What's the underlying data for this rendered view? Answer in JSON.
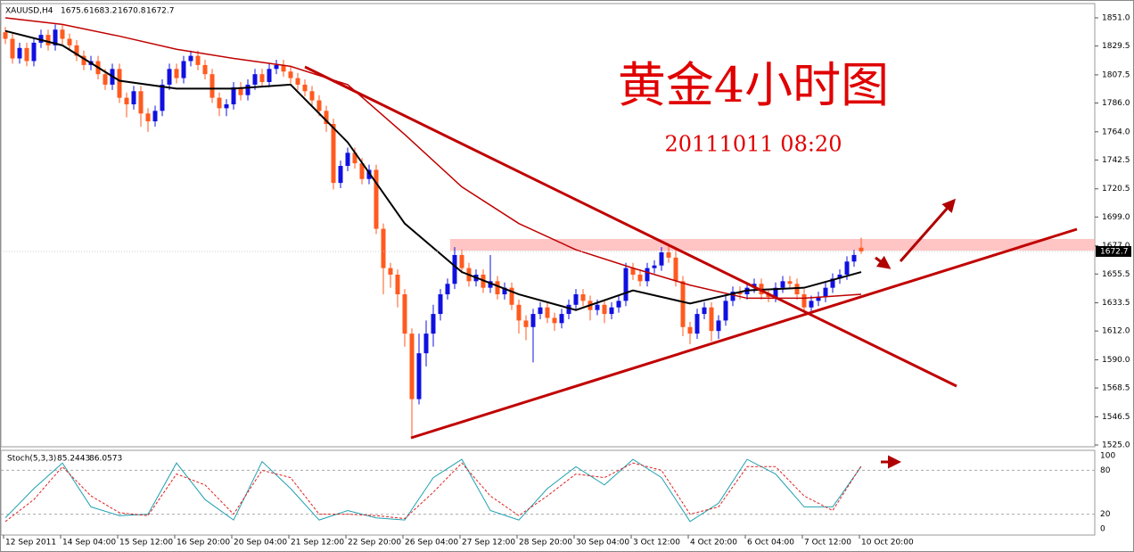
{
  "chart_data": [
    {
      "type": "candlestick",
      "symbol": "XAUUSD,H4",
      "title": "黄金4小时图",
      "subtitle": "20111011 08:20",
      "open": [
        1840,
        1835,
        1820,
        1828,
        1818,
        1832,
        1838,
        1830,
        1842,
        1835,
        1830,
        1822,
        1815,
        1818,
        1808,
        1800,
        1812,
        1790,
        1785,
        1795,
        1778,
        1772,
        1780,
        1800,
        1812,
        1805,
        1818,
        1822,
        1815,
        1808,
        1790,
        1782,
        1785,
        1798,
        1792,
        1800,
        1808,
        1802,
        1812,
        1815,
        1810,
        1805,
        1800,
        1795,
        1788,
        1780,
        1770,
        1725,
        1738,
        1748,
        1740,
        1728,
        1735,
        1690,
        1660,
        1655,
        1640,
        1610,
        1560,
        1595,
        1610,
        1625,
        1640,
        1648,
        1670,
        1660,
        1650,
        1655,
        1645,
        1650,
        1640,
        1645,
        1632,
        1620,
        1615,
        1625,
        1630,
        1622,
        1618,
        1625,
        1632,
        1640,
        1635,
        1628,
        1632,
        1625,
        1630,
        1635,
        1660,
        1655,
        1650,
        1660,
        1662,
        1672,
        1668,
        1650,
        1615,
        1610,
        1625,
        1630,
        1612,
        1620,
        1635,
        1642,
        1640,
        1645,
        1648,
        1640,
        1638,
        1645,
        1650,
        1648,
        1640,
        1630,
        1635,
        1638,
        1645,
        1652,
        1655,
        1665,
        1675.6
      ],
      "high": [
        1844,
        1839,
        1832,
        1832,
        1836,
        1842,
        1842,
        1846,
        1846,
        1839,
        1834,
        1826,
        1822,
        1822,
        1812,
        1816,
        1816,
        1794,
        1799,
        1799,
        1782,
        1784,
        1804,
        1816,
        1816,
        1822,
        1826,
        1826,
        1819,
        1812,
        1794,
        1789,
        1802,
        1802,
        1804,
        1812,
        1812,
        1816,
        1819,
        1819,
        1814,
        1809,
        1804,
        1799,
        1792,
        1784,
        1774,
        1742,
        1752,
        1752,
        1744,
        1739,
        1739,
        1694,
        1664,
        1659,
        1644,
        1614,
        1610,
        1620,
        1632,
        1644,
        1652,
        1676,
        1674,
        1664,
        1659,
        1659,
        1670,
        1654,
        1649,
        1649,
        1636,
        1624,
        1629,
        1634,
        1634,
        1626,
        1629,
        1636,
        1644,
        1644,
        1639,
        1636,
        1636,
        1634,
        1639,
        1664,
        1664,
        1659,
        1664,
        1666,
        1676,
        1678,
        1674,
        1654,
        1619,
        1629,
        1634,
        1634,
        1624,
        1639,
        1646,
        1646,
        1649,
        1652,
        1652,
        1644,
        1649,
        1654,
        1654,
        1652,
        1644,
        1639,
        1642,
        1649,
        1656,
        1659,
        1669,
        1674,
        1683.2
      ],
      "low": [
        1831,
        1816,
        1816,
        1814,
        1814,
        1828,
        1826,
        1826,
        1831,
        1826,
        1818,
        1811,
        1811,
        1804,
        1796,
        1796,
        1786,
        1775,
        1781,
        1768,
        1764,
        1768,
        1776,
        1796,
        1801,
        1801,
        1814,
        1811,
        1804,
        1786,
        1776,
        1776,
        1781,
        1788,
        1788,
        1796,
        1798,
        1798,
        1808,
        1806,
        1801,
        1796,
        1791,
        1784,
        1776,
        1764,
        1720,
        1721,
        1734,
        1736,
        1724,
        1724,
        1686,
        1640,
        1645,
        1630,
        1600,
        1532,
        1556,
        1585,
        1600,
        1620,
        1636,
        1644,
        1656,
        1646,
        1646,
        1641,
        1641,
        1636,
        1636,
        1628,
        1610,
        1605,
        1588,
        1621,
        1618,
        1612,
        1614,
        1621,
        1628,
        1631,
        1620,
        1624,
        1618,
        1621,
        1626,
        1631,
        1651,
        1646,
        1646,
        1656,
        1658,
        1664,
        1646,
        1608,
        1602,
        1606,
        1621,
        1604,
        1606,
        1616,
        1631,
        1636,
        1636,
        1641,
        1636,
        1634,
        1634,
        1641,
        1644,
        1636,
        1626,
        1626,
        1631,
        1634,
        1641,
        1648,
        1651,
        1661,
        1670.8
      ],
      "close": [
        1835,
        1820,
        1828,
        1818,
        1832,
        1838,
        1830,
        1842,
        1835,
        1830,
        1822,
        1815,
        1818,
        1808,
        1800,
        1812,
        1790,
        1785,
        1795,
        1778,
        1772,
        1780,
        1800,
        1812,
        1805,
        1818,
        1822,
        1815,
        1808,
        1790,
        1782,
        1785,
        1798,
        1792,
        1800,
        1808,
        1802,
        1812,
        1815,
        1810,
        1805,
        1800,
        1795,
        1788,
        1780,
        1770,
        1725,
        1738,
        1748,
        1740,
        1728,
        1735,
        1690,
        1660,
        1655,
        1640,
        1610,
        1560,
        1595,
        1610,
        1625,
        1640,
        1648,
        1670,
        1660,
        1650,
        1655,
        1645,
        1650,
        1640,
        1645,
        1632,
        1620,
        1615,
        1625,
        1630,
        1622,
        1618,
        1625,
        1632,
        1640,
        1635,
        1628,
        1632,
        1625,
        1630,
        1635,
        1660,
        1655,
        1650,
        1660,
        1662,
        1672,
        1668,
        1650,
        1615,
        1610,
        1625,
        1630,
        1612,
        1620,
        1635,
        1642,
        1640,
        1645,
        1648,
        1640,
        1638,
        1645,
        1650,
        1648,
        1640,
        1630,
        1635,
        1638,
        1645,
        1652,
        1655,
        1665,
        1670,
        1672.7
      ],
      "up_color": "#1010e0",
      "down_color": "#ff5a1f",
      "lines": [
        {
          "color": "#c00000",
          "width": 1.5,
          "x": [
            0,
            8,
            16,
            24,
            32,
            40,
            48,
            56,
            64,
            72,
            80,
            88,
            96,
            104,
            112,
            120
          ],
          "values": [
            1851,
            1846,
            1837,
            1827,
            1820,
            1814,
            1800,
            1762,
            1722,
            1694,
            1674,
            1660,
            1647,
            1637,
            1637,
            1640
          ]
        },
        {
          "color": "#000000",
          "width": 2,
          "x": [
            0,
            8,
            16,
            24,
            32,
            40,
            48,
            56,
            64,
            72,
            80,
            88,
            96,
            104,
            112,
            120
          ],
          "values": [
            1841,
            1830,
            1803,
            1797,
            1797,
            1800,
            1756,
            1694,
            1657,
            1640,
            1628,
            1643,
            1633,
            1643,
            1645,
            1657
          ]
        }
      ],
      "ylim": [
        1525,
        1851
      ],
      "yticks": [
        {
          "value": 1851,
          "label": "1851.0"
        },
        {
          "value": 1829.5,
          "label": "1829.5"
        },
        {
          "value": 1807.5,
          "label": "1807.5"
        },
        {
          "value": 1786,
          "label": "1786.0"
        },
        {
          "value": 1764,
          "label": "1764.0"
        },
        {
          "value": 1742.5,
          "label": "1742.5"
        },
        {
          "value": 1720.5,
          "label": "1720.5"
        },
        {
          "value": 1699,
          "label": "1699.0"
        },
        {
          "value": 1677,
          "label": "1677.0"
        },
        {
          "value": 1655.5,
          "label": "1655.5"
        },
        {
          "value": 1633.5,
          "label": "1633.5"
        },
        {
          "value": 1612,
          "label": "1612.0"
        },
        {
          "value": 1590,
          "label": "1590.0"
        },
        {
          "value": 1568.5,
          "label": "1568.5"
        },
        {
          "value": 1546.5,
          "label": "1546.5"
        },
        {
          "value": 1525,
          "label": "1525.0"
        }
      ],
      "x_labels": [
        "12 Sep 2011",
        "14 Sep 04:00",
        "15 Sep 12:00",
        "16 Sep 20:00",
        "20 Sep 04:00",
        "21 Sep 12:00",
        "22 Sep 20:00",
        "26 Sep 04:00",
        "27 Sep 12:00",
        "28 Sep 20:00",
        "30 Sep 04:00",
        "3 Oct 12:00",
        "4 Oct 20:00",
        "6 Oct 04:00",
        "7 Oct 12:00",
        "10 Oct 20:00"
      ]
    },
    {
      "type": "stochastic",
      "title": "Stoch(5,3,3)",
      "series": [
        {
          "color": "#20a0b0",
          "x": [
            0,
            4,
            8,
            12,
            16,
            20,
            24,
            28,
            32,
            36,
            40,
            44,
            48,
            52,
            56,
            60,
            64,
            68,
            72,
            76,
            80,
            84,
            88,
            92,
            96,
            100,
            104,
            108,
            112,
            116,
            120
          ],
          "values": [
            15,
            55,
            90,
            30,
            18,
            20,
            90,
            40,
            12,
            92,
            55,
            12,
            25,
            15,
            12,
            70,
            95,
            25,
            12,
            55,
            85,
            60,
            95,
            70,
            10,
            35,
            95,
            75,
            30,
            30,
            85.2443
          ]
        },
        {
          "color": "#e02020",
          "dashed": true,
          "x": [
            0,
            4,
            8,
            12,
            16,
            20,
            24,
            28,
            32,
            36,
            40,
            44,
            48,
            52,
            56,
            60,
            64,
            68,
            72,
            76,
            80,
            84,
            88,
            92,
            96,
            100,
            104,
            108,
            112,
            116,
            120
          ],
          "values": [
            10,
            40,
            85,
            45,
            22,
            18,
            75,
            60,
            20,
            80,
            70,
            20,
            20,
            18,
            14,
            50,
            90,
            45,
            18,
            45,
            75,
            70,
            90,
            80,
            20,
            30,
            85,
            85,
            45,
            25,
            86.0573
          ]
        }
      ],
      "ylim": [
        0,
        100
      ],
      "yticks": [
        0,
        20,
        80,
        100
      ]
    }
  ]
}
